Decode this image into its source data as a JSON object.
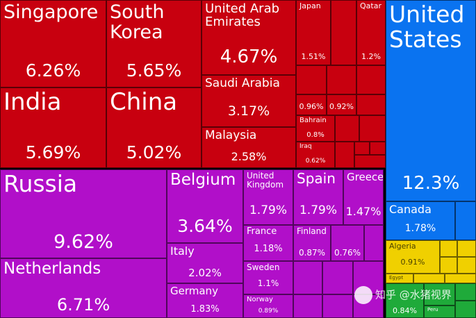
{
  "chart_data": {
    "type": "treemap",
    "unit": "%",
    "colors": {
      "asia": "#c8000f",
      "europe": "#b10fc9",
      "north_america": "#0a73f0",
      "africa": "#f0d000",
      "south_america": "#1faa3a"
    },
    "items": [
      {
        "name": "Singapore",
        "value": 6.26,
        "label": "6.26%",
        "group": "asia"
      },
      {
        "name": "South Korea",
        "value": 5.65,
        "label": "5.65%",
        "group": "asia"
      },
      {
        "name": "India",
        "value": 5.69,
        "label": "5.69%",
        "group": "asia"
      },
      {
        "name": "China",
        "value": 5.02,
        "label": "5.02%",
        "group": "asia"
      },
      {
        "name": "United Arab Emirates",
        "value": 4.67,
        "label": "4.67%",
        "group": "asia"
      },
      {
        "name": "Saudi Arabia",
        "value": 3.17,
        "label": "3.17%",
        "group": "asia"
      },
      {
        "name": "Malaysia",
        "value": 2.58,
        "label": "2.58%",
        "group": "asia"
      },
      {
        "name": "Japan",
        "value": 1.51,
        "label": "1.51%",
        "group": "asia"
      },
      {
        "name": "Qatar",
        "value": 1.2,
        "label": "1.2%",
        "group": "asia"
      },
      {
        "name": "",
        "value": 0.96,
        "label": "0.96%",
        "group": "asia"
      },
      {
        "name": "",
        "value": 0.92,
        "label": "0.92%",
        "group": "asia"
      },
      {
        "name": "Bahrain",
        "value": 0.8,
        "label": "0.8%",
        "group": "asia"
      },
      {
        "name": "Iraq",
        "value": 0.62,
        "label": "0.62%",
        "group": "asia"
      },
      {
        "name": "United States",
        "value": 12.3,
        "label": "12.3%",
        "group": "north_america"
      },
      {
        "name": "Canada",
        "value": 1.78,
        "label": "1.78%",
        "group": "north_america"
      },
      {
        "name": "Russia",
        "value": 9.62,
        "label": "9.62%",
        "group": "europe"
      },
      {
        "name": "Netherlands",
        "value": 6.71,
        "label": "6.71%",
        "group": "europe"
      },
      {
        "name": "Belgium",
        "value": 3.64,
        "label": "3.64%",
        "group": "europe"
      },
      {
        "name": "Italy",
        "value": 2.02,
        "label": "2.02%",
        "group": "europe"
      },
      {
        "name": "Germany",
        "value": 1.83,
        "label": "1.83%",
        "group": "europe"
      },
      {
        "name": "United Kingdom",
        "value": 1.79,
        "label": "1.79%",
        "group": "europe"
      },
      {
        "name": "Spain",
        "value": 1.79,
        "label": "1.79%",
        "group": "europe"
      },
      {
        "name": "Greece",
        "value": 1.47,
        "label": "1.47%",
        "group": "europe"
      },
      {
        "name": "France",
        "value": 1.18,
        "label": "1.18%",
        "group": "europe"
      },
      {
        "name": "Finland",
        "value": 0.87,
        "label": "0.87%",
        "group": "europe"
      },
      {
        "name": "",
        "value": 0.76,
        "label": "0.76%",
        "group": "europe"
      },
      {
        "name": "Sweden",
        "value": 1.1,
        "label": "1.1%",
        "group": "europe"
      },
      {
        "name": "Norway",
        "value": 0.89,
        "label": "0.89%",
        "group": "europe"
      },
      {
        "name": "Algeria",
        "value": 0.91,
        "label": "0.91%",
        "group": "africa"
      },
      {
        "name": "Egypt",
        "value": null,
        "label": "",
        "group": "africa"
      },
      {
        "name": "",
        "value": 0.84,
        "label": "0.84%",
        "group": "south_america"
      },
      {
        "name": "Peru",
        "value": null,
        "label": "",
        "group": "south_america"
      }
    ]
  },
  "watermark": {
    "text": "知乎 @水猪视界"
  }
}
